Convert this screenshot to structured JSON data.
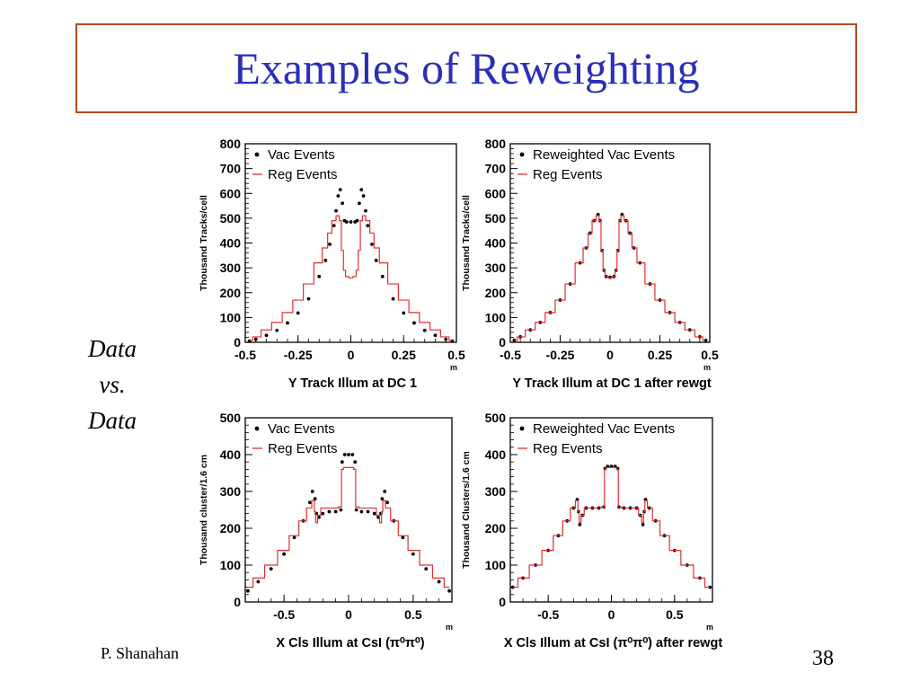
{
  "slide": {
    "title": "Examples of Reweighting",
    "side_label": [
      "Data",
      "vs.",
      "Data"
    ],
    "footer_left": "P. Shanahan",
    "page_number": "38",
    "colors": {
      "title": "#2b2fb8",
      "title_border": "#b5471f",
      "reg_line": "#e03030",
      "vac_points": "#000000"
    }
  },
  "chart_data": [
    {
      "type": "line",
      "xlabel": "Y Track Illum at DC 1",
      "xunit": "m",
      "ylabel": "Thousand Tracks/cell",
      "xlim": [
        -0.5,
        0.5
      ],
      "ylim": [
        0,
        800
      ],
      "xticks": [
        -0.5,
        -0.25,
        0,
        0.25,
        0.5
      ],
      "xtick_labels": [
        "-0.5",
        "-0.25",
        "0",
        "0.25",
        "0.5"
      ],
      "yticks": [
        0,
        100,
        200,
        300,
        400,
        500,
        600,
        700,
        800
      ],
      "legend": "top-left",
      "grid": false,
      "series": [
        {
          "name": "Vac Events",
          "style": "points",
          "color": "#000000",
          "x": [
            -0.48,
            -0.45,
            -0.4,
            -0.35,
            -0.3,
            -0.25,
            -0.2,
            -0.15,
            -0.12,
            -0.1,
            -0.08,
            -0.07,
            -0.06,
            -0.05,
            -0.04,
            -0.03,
            -0.02,
            0,
            0.02,
            0.03,
            0.04,
            0.05,
            0.06,
            0.07,
            0.08,
            0.1,
            0.12,
            0.15,
            0.2,
            0.25,
            0.3,
            0.35,
            0.4,
            0.45,
            0.48
          ],
          "y": [
            5,
            12,
            28,
            48,
            78,
            118,
            175,
            265,
            330,
            395,
            470,
            530,
            590,
            615,
            560,
            490,
            485,
            485,
            485,
            490,
            560,
            615,
            590,
            530,
            470,
            395,
            330,
            265,
            175,
            118,
            78,
            48,
            28,
            12,
            5
          ]
        },
        {
          "name": "Reg Events",
          "style": "line",
          "color": "#e03030",
          "x": [
            -0.48,
            -0.45,
            -0.4,
            -0.35,
            -0.3,
            -0.25,
            -0.2,
            -0.15,
            -0.12,
            -0.1,
            -0.08,
            -0.06,
            -0.05,
            -0.04,
            -0.03,
            -0.02,
            0,
            0.02,
            0.03,
            0.04,
            0.05,
            0.06,
            0.08,
            0.1,
            0.12,
            0.15,
            0.2,
            0.25,
            0.3,
            0.35,
            0.4,
            0.45,
            0.48
          ],
          "y": [
            8,
            22,
            50,
            80,
            120,
            170,
            235,
            320,
            380,
            440,
            490,
            510,
            490,
            370,
            290,
            265,
            260,
            265,
            290,
            370,
            490,
            510,
            490,
            440,
            380,
            320,
            235,
            170,
            120,
            80,
            50,
            22,
            8
          ]
        }
      ]
    },
    {
      "type": "line",
      "xlabel": "Y Track Illum at DC 1 after rewgt",
      "xunit": "m",
      "ylabel": "Thousand Tracks/cell",
      "xlim": [
        -0.5,
        0.5
      ],
      "ylim": [
        0,
        800
      ],
      "xticks": [
        -0.5,
        -0.25,
        0,
        0.25,
        0.5
      ],
      "xtick_labels": [
        "-0.5",
        "-0.25",
        "0",
        "0.25",
        "0.5"
      ],
      "yticks": [
        0,
        100,
        200,
        300,
        400,
        500,
        600,
        700,
        800
      ],
      "legend": "top-left",
      "grid": false,
      "series": [
        {
          "name": "Reweighted Vac Events",
          "style": "points",
          "color": "#000000",
          "x": [
            -0.48,
            -0.45,
            -0.4,
            -0.35,
            -0.3,
            -0.25,
            -0.2,
            -0.15,
            -0.12,
            -0.1,
            -0.08,
            -0.06,
            -0.05,
            -0.04,
            -0.03,
            -0.02,
            0,
            0.02,
            0.03,
            0.04,
            0.05,
            0.06,
            0.08,
            0.1,
            0.12,
            0.15,
            0.2,
            0.25,
            0.3,
            0.35,
            0.4,
            0.45,
            0.48
          ],
          "y": [
            8,
            22,
            50,
            80,
            120,
            170,
            235,
            320,
            380,
            440,
            490,
            515,
            490,
            370,
            290,
            265,
            262,
            265,
            290,
            370,
            490,
            515,
            490,
            440,
            380,
            320,
            235,
            170,
            120,
            80,
            50,
            22,
            8
          ]
        },
        {
          "name": "Reg Events",
          "style": "line",
          "color": "#e03030",
          "x": [
            -0.48,
            -0.45,
            -0.4,
            -0.35,
            -0.3,
            -0.25,
            -0.2,
            -0.15,
            -0.12,
            -0.1,
            -0.08,
            -0.06,
            -0.05,
            -0.04,
            -0.03,
            -0.02,
            0,
            0.02,
            0.03,
            0.04,
            0.05,
            0.06,
            0.08,
            0.1,
            0.12,
            0.15,
            0.2,
            0.25,
            0.3,
            0.35,
            0.4,
            0.45,
            0.48
          ],
          "y": [
            8,
            22,
            50,
            80,
            120,
            170,
            235,
            320,
            380,
            440,
            490,
            510,
            490,
            370,
            290,
            265,
            260,
            265,
            290,
            370,
            490,
            510,
            490,
            440,
            380,
            320,
            235,
            170,
            120,
            80,
            50,
            22,
            8
          ]
        }
      ]
    },
    {
      "type": "line",
      "xlabel": "X Cls Illum at CsI (π⁰π⁰)",
      "xunit": "m",
      "ylabel": "Thousand cluster/1.6 cm",
      "xlim": [
        -0.8,
        0.8
      ],
      "ylim": [
        0,
        500
      ],
      "xticks": [
        -0.5,
        0,
        0.5
      ],
      "xtick_labels": [
        "-0.5",
        "0",
        "0.5"
      ],
      "yticks": [
        0,
        100,
        200,
        300,
        400,
        500
      ],
      "legend": "top-left",
      "grid": false,
      "series": [
        {
          "name": "Vac Events",
          "style": "points",
          "color": "#000000",
          "x": [
            -0.78,
            -0.7,
            -0.6,
            -0.5,
            -0.42,
            -0.35,
            -0.3,
            -0.28,
            -0.26,
            -0.25,
            -0.23,
            -0.2,
            -0.15,
            -0.1,
            -0.06,
            -0.05,
            -0.03,
            0,
            0.03,
            0.05,
            0.06,
            0.1,
            0.15,
            0.2,
            0.23,
            0.25,
            0.26,
            0.28,
            0.3,
            0.35,
            0.42,
            0.5,
            0.6,
            0.7,
            0.78
          ],
          "y": [
            30,
            55,
            90,
            130,
            175,
            220,
            270,
            300,
            280,
            240,
            230,
            240,
            245,
            245,
            250,
            380,
            400,
            400,
            400,
            380,
            250,
            245,
            245,
            240,
            230,
            240,
            280,
            300,
            270,
            220,
            175,
            130,
            90,
            55,
            30
          ]
        },
        {
          "name": "Reg Events",
          "style": "line",
          "color": "#e03030",
          "x": [
            -0.78,
            -0.7,
            -0.6,
            -0.5,
            -0.42,
            -0.35,
            -0.3,
            -0.27,
            -0.26,
            -0.25,
            -0.23,
            -0.2,
            -0.15,
            -0.1,
            -0.06,
            -0.05,
            -0.03,
            0,
            0.03,
            0.05,
            0.06,
            0.1,
            0.15,
            0.2,
            0.23,
            0.25,
            0.26,
            0.27,
            0.3,
            0.35,
            0.42,
            0.5,
            0.6,
            0.7,
            0.78
          ],
          "y": [
            40,
            65,
            100,
            140,
            180,
            220,
            255,
            275,
            245,
            215,
            235,
            255,
            255,
            255,
            258,
            360,
            365,
            365,
            365,
            360,
            258,
            255,
            255,
            255,
            235,
            215,
            245,
            275,
            255,
            220,
            180,
            140,
            100,
            65,
            40
          ]
        }
      ]
    },
    {
      "type": "line",
      "xlabel": "X Cls Illum at CsI (π⁰π⁰) after rewgt",
      "xunit": "m",
      "ylabel": "Thousand Clusters/1.6 cm",
      "xlim": [
        -0.8,
        0.8
      ],
      "ylim": [
        0,
        500
      ],
      "xticks": [
        -0.5,
        0,
        0.5
      ],
      "xtick_labels": [
        "-0.5",
        "0",
        "0.5"
      ],
      "yticks": [
        0,
        100,
        200,
        300,
        400,
        500
      ],
      "legend": "top-left",
      "grid": false,
      "series": [
        {
          "name": "Reweighted Vac Events",
          "style": "points",
          "color": "#000000",
          "x": [
            -0.78,
            -0.7,
            -0.6,
            -0.5,
            -0.42,
            -0.35,
            -0.3,
            -0.27,
            -0.26,
            -0.25,
            -0.23,
            -0.2,
            -0.15,
            -0.1,
            -0.06,
            -0.05,
            -0.03,
            0,
            0.03,
            0.05,
            0.06,
            0.1,
            0.15,
            0.2,
            0.23,
            0.25,
            0.26,
            0.27,
            0.3,
            0.35,
            0.42,
            0.5,
            0.6,
            0.7,
            0.78
          ],
          "y": [
            40,
            65,
            100,
            140,
            180,
            220,
            255,
            278,
            245,
            210,
            235,
            255,
            255,
            255,
            258,
            362,
            368,
            368,
            368,
            362,
            258,
            255,
            255,
            255,
            235,
            210,
            245,
            278,
            255,
            220,
            180,
            140,
            100,
            65,
            40
          ]
        },
        {
          "name": "Reg Events",
          "style": "line",
          "color": "#e03030",
          "x": [
            -0.78,
            -0.7,
            -0.6,
            -0.5,
            -0.42,
            -0.35,
            -0.3,
            -0.27,
            -0.26,
            -0.25,
            -0.23,
            -0.2,
            -0.15,
            -0.1,
            -0.06,
            -0.05,
            -0.03,
            0,
            0.03,
            0.05,
            0.06,
            0.1,
            0.15,
            0.2,
            0.23,
            0.25,
            0.26,
            0.27,
            0.3,
            0.35,
            0.42,
            0.5,
            0.6,
            0.7,
            0.78
          ],
          "y": [
            40,
            65,
            100,
            140,
            180,
            220,
            255,
            275,
            245,
            215,
            235,
            255,
            255,
            255,
            258,
            360,
            365,
            365,
            365,
            360,
            258,
            255,
            255,
            255,
            235,
            215,
            245,
            275,
            255,
            220,
            180,
            140,
            100,
            65,
            40
          ]
        }
      ]
    }
  ]
}
